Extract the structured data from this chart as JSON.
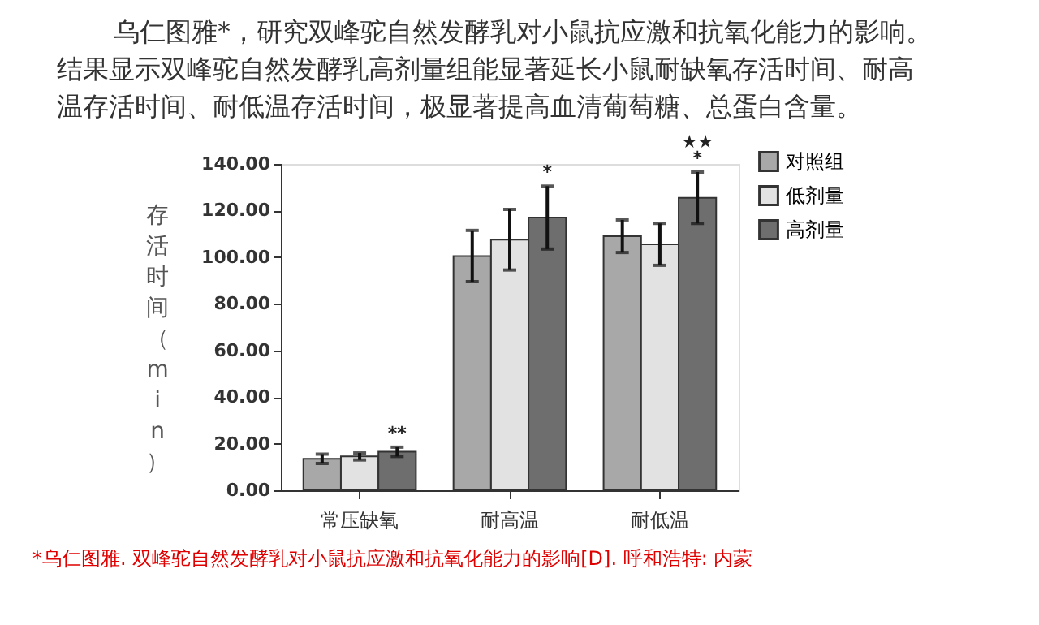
{
  "chart_data": {
    "type": "bar",
    "title": "乌仁图雅*，研究双峰驼自然发酵乳对小鼠抗应激和抗氧化能力的影响。",
    "subtitle": "结果显示双峰驼自然发酵乳高剂量组能显著延长小鼠耐缺氧存活时间、耐高温存活时间、耐低温存活时间，极显著提高血清葡萄糖、总蛋白含量。",
    "ylabel": "存活时间（min）",
    "categories": [
      "常压缺氧",
      "耐高温",
      "耐低温"
    ],
    "series": [
      {
        "name": "对照组",
        "color": "#a8a8a8",
        "values": [
          13.5,
          100.5,
          109
        ],
        "errors": [
          2,
          11,
          7
        ]
      },
      {
        "name": "低剂量",
        "color": "#e2e2e2",
        "values": [
          14.5,
          107.5,
          105.5
        ],
        "errors": [
          1.5,
          13,
          9
        ]
      },
      {
        "name": "高剂量",
        "color": "#6e6e6e",
        "values": [
          16.5,
          117,
          125.5
        ],
        "errors": [
          2,
          13.5,
          11
        ]
      }
    ],
    "ylim": [
      0,
      140
    ],
    "yticks": [
      {
        "value": 0,
        "label": "0.00"
      },
      {
        "value": 20,
        "label": "20.00"
      },
      {
        "value": 40,
        "label": "40.00"
      },
      {
        "value": 60,
        "label": "60.00"
      },
      {
        "value": 80,
        "label": "80.00"
      },
      {
        "value": 100,
        "label": "100.00"
      },
      {
        "value": 120,
        "label": "120.00"
      },
      {
        "value": 140,
        "label": "140.00"
      }
    ],
    "grid": false,
    "legend": "top right",
    "annotations": [
      "**",
      "*",
      "★★",
      "*",
      "*乌仁图雅. 双峰驼自然发酵乳对小鼠抗应激和抗氧化能力的影响[D]. 呼和浩特: 内蒙"
    ]
  }
}
